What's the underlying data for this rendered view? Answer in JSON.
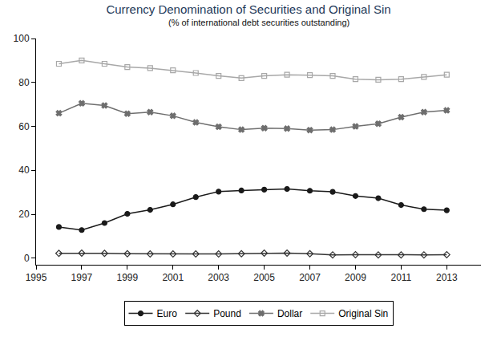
{
  "chart_data": {
    "type": "line",
    "title": "Currency Denomination of Securities and Original Sin",
    "subtitle": "(% of international debt securities outstanding)",
    "x": [
      1996,
      1997,
      1998,
      1999,
      2000,
      2001,
      2002,
      2003,
      2004,
      2005,
      2006,
      2007,
      2008,
      2009,
      2010,
      2011,
      2012,
      2013
    ],
    "series": [
      {
        "name": "Euro",
        "color": "#1a1a1a",
        "marker": "circle",
        "line_style": "solid",
        "values": [
          14.2,
          12.8,
          16,
          20.2,
          22,
          24.5,
          27.8,
          30.3,
          30.8,
          31.2,
          31.5,
          30.7,
          30.2,
          28.3,
          27.3,
          24.2,
          22.3,
          21.8
        ]
      },
      {
        "name": "Pound",
        "color": "#333333",
        "marker": "diamond-open",
        "line_style": "solid",
        "values": [
          2.2,
          2.3,
          2.2,
          2,
          1.9,
          1.9,
          1.9,
          1.9,
          2,
          2.3,
          2.3,
          2,
          1.5,
          1.6,
          1.5,
          1.5,
          1.5,
          1.6
        ]
      },
      {
        "name": "Dollar",
        "color": "#6e6e6e",
        "marker": "x",
        "line_style": "solid",
        "values": [
          66,
          70.5,
          69.5,
          65.8,
          66.5,
          64.8,
          61.8,
          59.8,
          58.5,
          59.2,
          59,
          58.3,
          58.5,
          60,
          61.2,
          64.2,
          66.5,
          67.3
        ]
      },
      {
        "name": "Original Sin",
        "color": "#a8a8a8",
        "marker": "square-open",
        "line_style": "solid",
        "values": [
          88.5,
          90,
          88.5,
          87,
          86.5,
          85.5,
          84.3,
          83,
          82,
          83,
          83.5,
          83.3,
          83,
          81.5,
          81.2,
          81.5,
          82.5,
          83.5
        ]
      }
    ],
    "xlim": [
      1995,
      2014.5
    ],
    "xticks": [
      1995,
      1997,
      1999,
      2001,
      2003,
      2005,
      2007,
      2009,
      2011,
      2013
    ],
    "ylim": [
      -3,
      100
    ],
    "yticks": [
      0,
      20,
      40,
      60,
      80,
      100
    ],
    "grid": false,
    "legend": "bottom"
  }
}
